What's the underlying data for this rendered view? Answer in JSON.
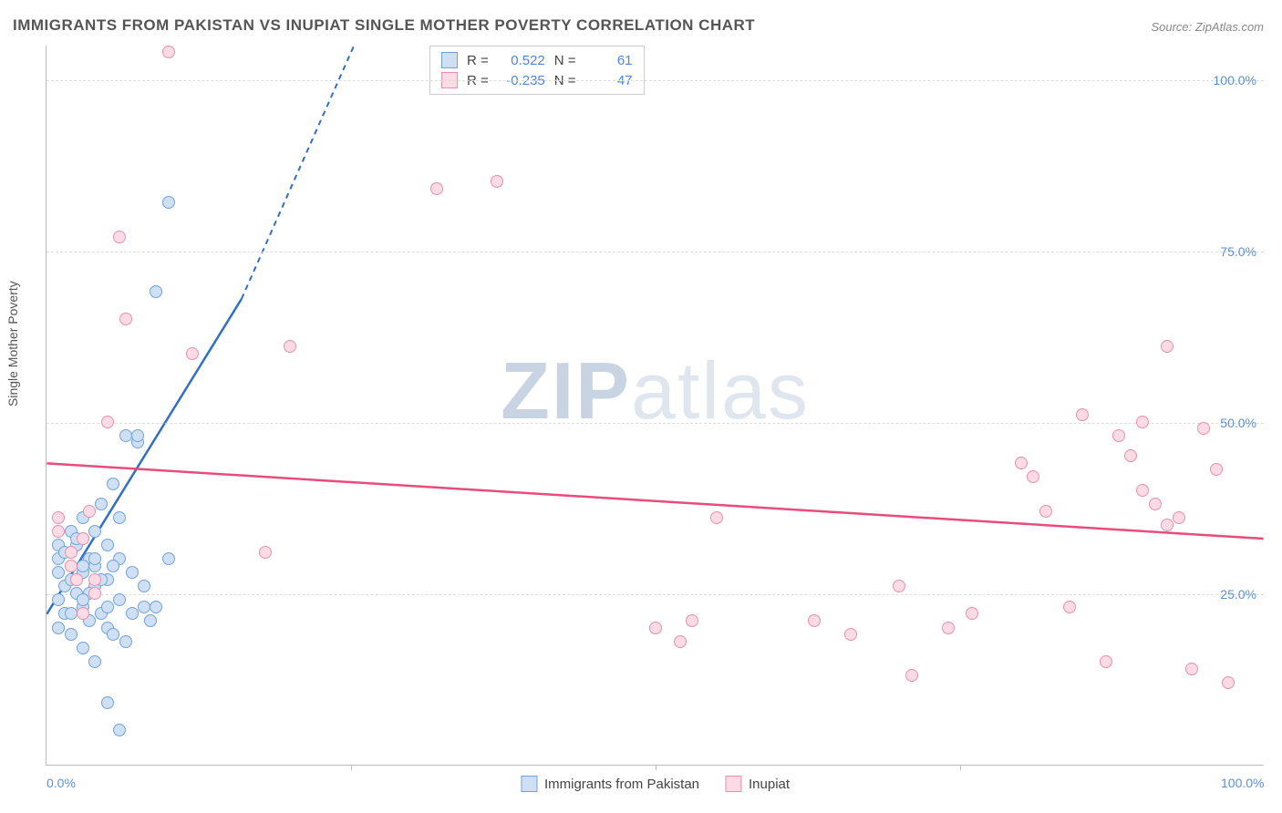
{
  "title": "IMMIGRANTS FROM PAKISTAN VS INUPIAT SINGLE MOTHER POVERTY CORRELATION CHART",
  "source_label": "Source: ZipAtlas.com",
  "watermark": {
    "bold": "ZIP",
    "rest": "atlas"
  },
  "chart": {
    "type": "scatter",
    "background_color": "#ffffff",
    "grid_color": "#dddddd",
    "axis_color": "#bbbbbb",
    "xlim": [
      0,
      100
    ],
    "ylim": [
      0,
      105
    ],
    "y_axis_title": "Single Mother Poverty",
    "y_gridlines": [
      25,
      50,
      75,
      100
    ],
    "y_tick_labels": [
      "25.0%",
      "50.0%",
      "75.0%",
      "100.0%"
    ],
    "x_ticks": [
      0,
      25,
      50,
      75,
      100
    ],
    "x_tick_labels": [
      "0.0%",
      "",
      "",
      "",
      "100.0%"
    ],
    "tick_label_color": "#5b8fd6",
    "tick_fontsize": 14,
    "marker_size": 14,
    "series": [
      {
        "name": "Immigrants from Pakistan",
        "fill": "#cfe0f5",
        "stroke": "#6fa3db",
        "trend_color": "#2f6fc7",
        "trend": {
          "x1": 0,
          "y1": 22,
          "x2": 16,
          "y2": 68,
          "dash_to_x": 26,
          "dash_to_y": 108
        },
        "stats": {
          "R": "0.522",
          "N": "61"
        },
        "points": [
          [
            1,
            28
          ],
          [
            1,
            30
          ],
          [
            1.5,
            26
          ],
          [
            2,
            27
          ],
          [
            2,
            29
          ],
          [
            2,
            31
          ],
          [
            2.5,
            25
          ],
          [
            2.5,
            32
          ],
          [
            3,
            23
          ],
          [
            3,
            28
          ],
          [
            3,
            33
          ],
          [
            3.5,
            21
          ],
          [
            3.5,
            30
          ],
          [
            4,
            26
          ],
          [
            4,
            29
          ],
          [
            4,
            34
          ],
          [
            4.5,
            22
          ],
          [
            4.5,
            38
          ],
          [
            5,
            20
          ],
          [
            5,
            27
          ],
          [
            5,
            32
          ],
          [
            5.5,
            19
          ],
          [
            5.5,
            41
          ],
          [
            6,
            24
          ],
          [
            6,
            30
          ],
          [
            6,
            36
          ],
          [
            6.5,
            18
          ],
          [
            6.5,
            48
          ],
          [
            7,
            22
          ],
          [
            7,
            28
          ],
          [
            7.5,
            47
          ],
          [
            7.5,
            48
          ],
          [
            8,
            23
          ],
          [
            8,
            26
          ],
          [
            8.5,
            21
          ],
          [
            9,
            69
          ],
          [
            9,
            23
          ],
          [
            10,
            82
          ],
          [
            10,
            30
          ],
          [
            4,
            15
          ],
          [
            5,
            9
          ],
          [
            6,
            5
          ],
          [
            3,
            17
          ],
          [
            2,
            19
          ],
          [
            1,
            24
          ],
          [
            1,
            32
          ],
          [
            2,
            34
          ],
          [
            3,
            36
          ],
          [
            1.5,
            22
          ],
          [
            2.5,
            27
          ],
          [
            3.5,
            25
          ],
          [
            4.5,
            27
          ],
          [
            5.5,
            29
          ],
          [
            1,
            20
          ],
          [
            2,
            22
          ],
          [
            3,
            24
          ],
          [
            4,
            30
          ],
          [
            1.5,
            31
          ],
          [
            2.5,
            33
          ],
          [
            3,
            29
          ],
          [
            5,
            23
          ]
        ]
      },
      {
        "name": "Inupiat",
        "fill": "#fddbe4",
        "stroke": "#e890ab",
        "trend_color": "#e94b7a",
        "trend": {
          "x1": 0,
          "y1": 44,
          "x2": 100,
          "y2": 33
        },
        "stats": {
          "R": "-0.235",
          "N": "47"
        },
        "points": [
          [
            1,
            36
          ],
          [
            1,
            34
          ],
          [
            2,
            29
          ],
          [
            2,
            31
          ],
          [
            2.5,
            27
          ],
          [
            3,
            33
          ],
          [
            3,
            22
          ],
          [
            3.5,
            37
          ],
          [
            4,
            27
          ],
          [
            4,
            25
          ],
          [
            5,
            50
          ],
          [
            6,
            77
          ],
          [
            6.5,
            65
          ],
          [
            10,
            104
          ],
          [
            12,
            60
          ],
          [
            18,
            31
          ],
          [
            20,
            61
          ],
          [
            32,
            84
          ],
          [
            37,
            85
          ],
          [
            50,
            20
          ],
          [
            52,
            18
          ],
          [
            53,
            21
          ],
          [
            55,
            36
          ],
          [
            63,
            21
          ],
          [
            66,
            19
          ],
          [
            70,
            26
          ],
          [
            71,
            13
          ],
          [
            74,
            20
          ],
          [
            76,
            22
          ],
          [
            80,
            44
          ],
          [
            81,
            42
          ],
          [
            82,
            37
          ],
          [
            84,
            23
          ],
          [
            85,
            51
          ],
          [
            87,
            15
          ],
          [
            88,
            48
          ],
          [
            89,
            45
          ],
          [
            90,
            50
          ],
          [
            90,
            40
          ],
          [
            91,
            38
          ],
          [
            92,
            35
          ],
          [
            92,
            61
          ],
          [
            93,
            36
          ],
          [
            94,
            14
          ],
          [
            95,
            49
          ],
          [
            96,
            43
          ],
          [
            97,
            12
          ]
        ]
      }
    ],
    "bottom_legend": [
      "Immigrants from Pakistan",
      "Inupiat"
    ]
  }
}
